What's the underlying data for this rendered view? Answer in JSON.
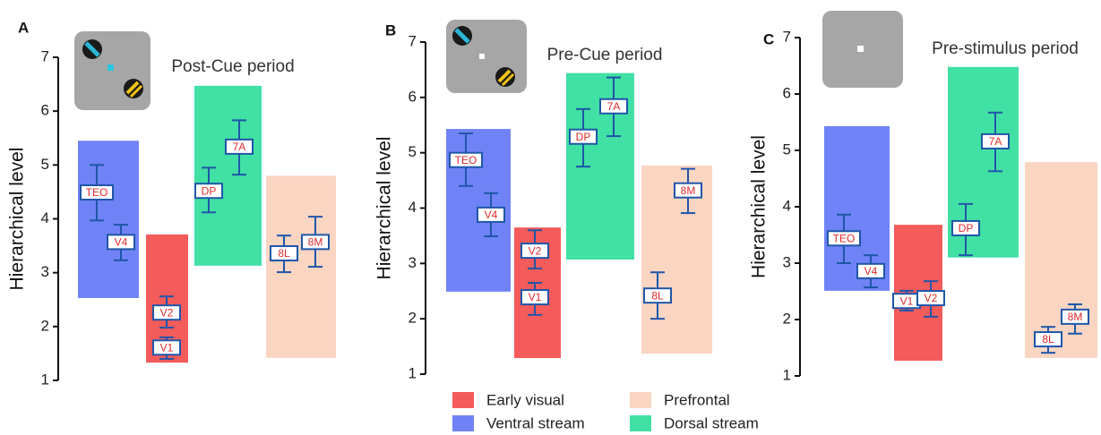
{
  "legend": [
    {
      "name": "Early visual",
      "color": "#f45b5b"
    },
    {
      "name": "Ventral stream",
      "color": "#7083f6"
    },
    {
      "name": "Prefrontal",
      "color": "#f9d5c2"
    },
    {
      "name": "Dorsal stream",
      "color": "#41e0a4"
    }
  ],
  "chart_data": [
    {
      "type": "errorbar",
      "panel": "A",
      "title": "Post-Cue period",
      "y_label": "Hierarchical level",
      "ylim": [
        1,
        7
      ],
      "yticks": [
        1,
        2,
        3,
        4,
        5,
        6,
        7
      ],
      "regions": [
        {
          "color": "#7083f6",
          "bottom": 2.53,
          "top": 5.45
        },
        {
          "color": "#f45b5b",
          "bottom": 1.33,
          "top": 3.71
        },
        {
          "color": "#41e0a4",
          "bottom": 3.13,
          "top": 6.47
        },
        {
          "color": "#f9d5c2",
          "bottom": 1.42,
          "top": 4.8
        }
      ],
      "points": [
        {
          "label": "TEO",
          "value": 4.49,
          "low": 3.97,
          "high": 5.0
        },
        {
          "label": "V4",
          "value": 3.57,
          "low": 3.23,
          "high": 3.89
        },
        {
          "label": "V2",
          "value": 2.26,
          "low": 1.98,
          "high": 2.56
        },
        {
          "label": "V1",
          "value": 1.61,
          "low": 1.4,
          "high": 1.8
        },
        {
          "label": "DP",
          "value": 4.52,
          "low": 4.12,
          "high": 4.95
        },
        {
          "label": "7A",
          "value": 5.34,
          "low": 4.82,
          "high": 5.83
        },
        {
          "label": "8L",
          "value": 3.36,
          "low": 3.01,
          "high": 3.69
        },
        {
          "label": "8M",
          "value": 3.57,
          "low": 3.11,
          "high": 4.04
        }
      ]
    },
    {
      "type": "errorbar",
      "panel": "B",
      "title": "Pre-Cue period",
      "y_label": "Hierarchical level",
      "ylim": [
        1,
        7
      ],
      "yticks": [
        1,
        2,
        3,
        4,
        5,
        6,
        7
      ],
      "regions": [
        {
          "color": "#7083f6",
          "bottom": 2.49,
          "top": 5.43
        },
        {
          "color": "#f45b5b",
          "bottom": 1.29,
          "top": 3.65
        },
        {
          "color": "#41e0a4",
          "bottom": 3.07,
          "top": 6.44
        },
        {
          "color": "#f9d5c2",
          "bottom": 1.37,
          "top": 4.77
        }
      ],
      "points": [
        {
          "label": "TEO",
          "value": 4.87,
          "low": 4.4,
          "high": 5.35
        },
        {
          "label": "V4",
          "value": 3.88,
          "low": 3.49,
          "high": 4.27
        },
        {
          "label": "V2",
          "value": 3.23,
          "low": 2.91,
          "high": 3.6
        },
        {
          "label": "V1",
          "value": 2.39,
          "low": 2.07,
          "high": 2.65
        },
        {
          "label": "DP",
          "value": 5.29,
          "low": 4.75,
          "high": 5.79
        },
        {
          "label": "7A",
          "value": 5.84,
          "low": 5.3,
          "high": 6.36
        },
        {
          "label": "8L",
          "value": 2.42,
          "low": 2.0,
          "high": 2.84
        },
        {
          "label": "8M",
          "value": 4.32,
          "low": 3.91,
          "high": 4.71
        }
      ]
    },
    {
      "type": "errorbar",
      "panel": "C",
      "title": "Pre-stimulus period",
      "y_label": "Hierarchical level",
      "ylim": [
        1,
        7
      ],
      "yticks": [
        1,
        2,
        3,
        4,
        5,
        6,
        7
      ],
      "regions": [
        {
          "color": "#7083f6",
          "bottom": 2.51,
          "top": 5.43
        },
        {
          "color": "#f45b5b",
          "bottom": 1.27,
          "top": 3.68
        },
        {
          "color": "#41e0a4",
          "bottom": 3.1,
          "top": 6.48
        },
        {
          "color": "#f9d5c2",
          "bottom": 1.32,
          "top": 4.79
        }
      ],
      "points": [
        {
          "label": "TEO",
          "value": 3.44,
          "low": 3.0,
          "high": 3.86
        },
        {
          "label": "V4",
          "value": 2.86,
          "low": 2.57,
          "high": 3.14
        },
        {
          "label": "V1",
          "value": 2.33,
          "low": 2.16,
          "high": 2.51
        },
        {
          "label": "V2",
          "value": 2.38,
          "low": 2.05,
          "high": 2.68
        },
        {
          "label": "DP",
          "value": 3.62,
          "low": 3.14,
          "high": 4.05
        },
        {
          "label": "7A",
          "value": 5.16,
          "low": 4.63,
          "high": 5.67
        },
        {
          "label": "8L",
          "value": 1.65,
          "low": 1.41,
          "high": 1.87
        },
        {
          "label": "8M",
          "value": 2.05,
          "low": 1.75,
          "high": 2.27
        }
      ]
    }
  ]
}
